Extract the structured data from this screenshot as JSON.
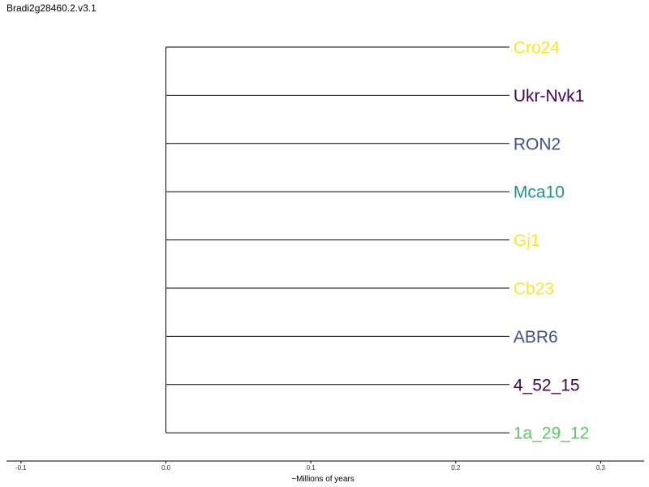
{
  "title": "Bradi2g28460.2.v3.1",
  "chart_data": {
    "type": "phylogenetic-tree",
    "xlabel": "~Millions of years",
    "xlim": [
      -0.11,
      0.33
    ],
    "xticks": [
      -0.1,
      0.0,
      0.1,
      0.2,
      0.3
    ],
    "xtick_labels": [
      "-0.1",
      "0.0",
      "0.1",
      "0.2",
      "0.3"
    ],
    "root_x": 0.0,
    "leaves": [
      {
        "name": "Cro24",
        "branch_end": 0.237,
        "color": "#fde725"
      },
      {
        "name": "Ukr-Nvk1",
        "branch_end": 0.237,
        "color": "#440154"
      },
      {
        "name": "RON2",
        "branch_end": 0.237,
        "color": "#3b528b"
      },
      {
        "name": "Mca10",
        "branch_end": 0.237,
        "color": "#21918c"
      },
      {
        "name": "Gj1",
        "branch_end": 0.237,
        "color": "#fde725"
      },
      {
        "name": "Cb23",
        "branch_end": 0.237,
        "color": "#fde725"
      },
      {
        "name": "ABR6",
        "branch_end": 0.237,
        "color": "#3b528b"
      },
      {
        "name": "4_52_15",
        "branch_end": 0.237,
        "color": "#440154"
      },
      {
        "name": "1a_29_12",
        "branch_end": 0.237,
        "color": "#5ec962"
      }
    ]
  }
}
